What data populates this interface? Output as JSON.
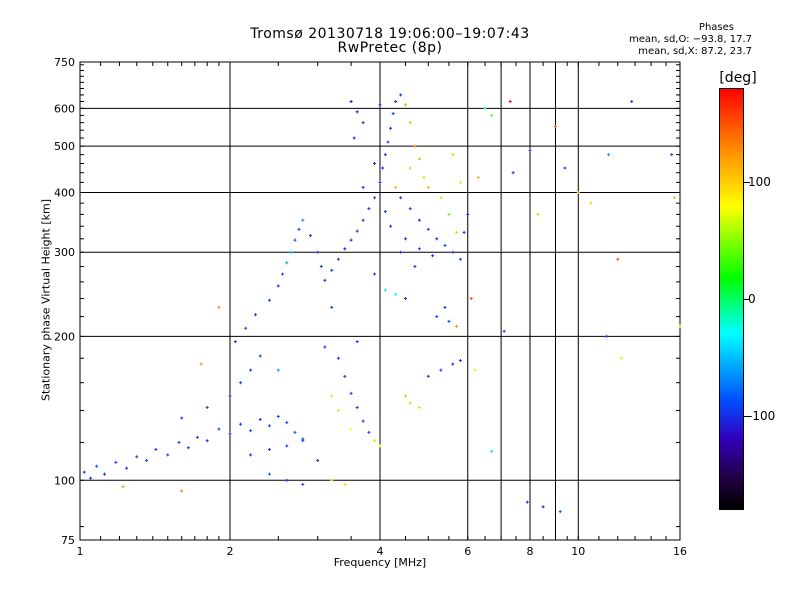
{
  "chart_data": {
    "type": "scatter",
    "title": "Tromsø 20130718 19:06:00–19:07:43",
    "subtitle": "RwPretec (8p)",
    "stats": {
      "header": "Phases",
      "line1": "mean, sd,O: −93.8, 17.7",
      "line2": "mean, sd,X:  87.2, 23.7"
    },
    "xlabel": "Frequency [MHz]",
    "ylabel": "Stationary phase Virtual Height [km]",
    "x_scale": "log",
    "y_scale": "log",
    "xlim": [
      1,
      16
    ],
    "ylim": [
      75,
      750
    ],
    "x_ticks": [
      1,
      2,
      4,
      6,
      8,
      10,
      16
    ],
    "x_tick_labels": [
      "1",
      "2",
      "4",
      "6",
      "8",
      "10",
      "16"
    ],
    "x_grid": [
      2,
      4,
      6,
      7,
      8,
      9,
      10
    ],
    "y_ticks": [
      75,
      100,
      200,
      300,
      400,
      500,
      600,
      750
    ],
    "y_tick_labels": [
      "75",
      "100",
      "200",
      "300",
      "400",
      "500",
      "600",
      "750"
    ],
    "y_grid": [
      100,
      200,
      300,
      400,
      500,
      600
    ],
    "grid": true,
    "colorbar": {
      "label": "[deg]",
      "ticks": [
        100,
        0,
        -100
      ],
      "tick_labels": [
        "100",
        "0",
        "-100"
      ],
      "range": [
        -180,
        180
      ],
      "colormap": "rainbow"
    },
    "series": [
      {
        "points": [
          [
            1.02,
            104,
            -95
          ],
          [
            1.05,
            101,
            -100
          ],
          [
            1.08,
            107,
            -90
          ],
          [
            1.12,
            103,
            -98
          ],
          [
            1.18,
            109,
            -92
          ],
          [
            1.24,
            106,
            -101
          ],
          [
            1.3,
            112,
            -95
          ],
          [
            1.36,
            110,
            -88
          ],
          [
            1.42,
            116,
            -97
          ],
          [
            1.5,
            113,
            -93
          ],
          [
            1.58,
            120,
            -99
          ],
          [
            1.65,
            117,
            -90
          ],
          [
            1.72,
            123,
            -96
          ],
          [
            1.8,
            121,
            -102
          ],
          [
            1.9,
            128,
            -91
          ],
          [
            2.0,
            125,
            -97
          ],
          [
            2.1,
            131,
            -94
          ],
          [
            2.2,
            127,
            -86
          ],
          [
            2.3,
            134,
            -100
          ],
          [
            2.4,
            130,
            -92
          ],
          [
            2.5,
            136,
            -89
          ],
          [
            2.6,
            132,
            -95
          ],
          [
            2.7,
            126,
            -85
          ],
          [
            2.8,
            122,
            -99
          ],
          [
            2.2,
            113,
            -98
          ],
          [
            2.4,
            116,
            -95
          ],
          [
            2.6,
            118,
            -93
          ],
          [
            2.8,
            121,
            -90
          ],
          [
            1.6,
            135,
            -96
          ],
          [
            1.8,
            142,
            -93
          ],
          [
            2.0,
            150,
            -99
          ],
          [
            2.1,
            160,
            -91
          ],
          [
            2.2,
            170,
            -97
          ],
          [
            2.3,
            182,
            -94
          ],
          [
            2.05,
            195,
            -100
          ],
          [
            2.15,
            208,
            -88
          ],
          [
            2.25,
            222,
            -95
          ],
          [
            2.4,
            238,
            -92
          ],
          [
            2.5,
            255,
            -97
          ],
          [
            2.55,
            270,
            -90
          ],
          [
            2.6,
            285,
            -60
          ],
          [
            2.65,
            300,
            -55
          ],
          [
            2.7,
            318,
            -95
          ],
          [
            2.75,
            335,
            -93
          ],
          [
            2.8,
            350,
            -65
          ],
          [
            2.9,
            325,
            -99
          ],
          [
            3.0,
            300,
            -90
          ],
          [
            3.05,
            280,
            -92
          ],
          [
            3.1,
            262,
            -101
          ],
          [
            3.2,
            275,
            -94
          ],
          [
            3.3,
            290,
            -96
          ],
          [
            3.4,
            305,
            -110
          ],
          [
            3.5,
            318,
            -102
          ],
          [
            3.6,
            332,
            -98
          ],
          [
            3.7,
            350,
            -104
          ],
          [
            3.8,
            370,
            -100
          ],
          [
            3.9,
            390,
            -95
          ],
          [
            4.0,
            420,
            -97
          ],
          [
            4.05,
            450,
            -105
          ],
          [
            4.1,
            480,
            -100
          ],
          [
            4.15,
            510,
            -93
          ],
          [
            4.2,
            545,
            -99
          ],
          [
            4.25,
            585,
            -92
          ],
          [
            4.3,
            620,
            -100
          ],
          [
            4.4,
            640,
            -95
          ],
          [
            3.5,
            620,
            -110
          ],
          [
            3.6,
            590,
            -105
          ],
          [
            3.7,
            560,
            -100
          ],
          [
            3.55,
            520,
            -108
          ],
          [
            4.0,
            610,
            -112
          ],
          [
            4.5,
            610,
            120
          ],
          [
            4.6,
            560,
            110
          ],
          [
            4.7,
            500,
            130
          ],
          [
            4.8,
            470,
            115
          ],
          [
            4.9,
            430,
            100
          ],
          [
            4.6,
            450,
            105
          ],
          [
            5.0,
            410,
            110
          ],
          [
            5.3,
            390,
            95
          ],
          [
            5.5,
            360,
            40
          ],
          [
            5.7,
            330,
            100
          ],
          [
            5.8,
            420,
            90
          ],
          [
            5.6,
            480,
            105
          ],
          [
            4.4,
            390,
            -98
          ],
          [
            4.6,
            370,
            -95
          ],
          [
            4.8,
            350,
            -97
          ],
          [
            5.0,
            335,
            -93
          ],
          [
            5.2,
            320,
            -100
          ],
          [
            5.4,
            310,
            -88
          ],
          [
            5.6,
            300,
            -92
          ],
          [
            5.8,
            290,
            -96
          ],
          [
            4.2,
            340,
            -100
          ],
          [
            4.5,
            320,
            -97
          ],
          [
            4.8,
            305,
            -94
          ],
          [
            5.1,
            295,
            -98
          ],
          [
            3.3,
            180,
            -98
          ],
          [
            3.4,
            165,
            -95
          ],
          [
            3.5,
            152,
            -90
          ],
          [
            3.6,
            142,
            -88
          ],
          [
            3.7,
            133,
            -97
          ],
          [
            3.8,
            126,
            -94
          ],
          [
            3.9,
            121,
            60
          ],
          [
            4.0,
            118,
            70
          ],
          [
            3.2,
            150,
            60
          ],
          [
            3.3,
            140,
            70
          ],
          [
            3.5,
            128,
            80
          ],
          [
            4.5,
            150,
            110
          ],
          [
            4.6,
            145,
            100
          ],
          [
            4.8,
            142,
            95
          ],
          [
            5.0,
            165,
            -95
          ],
          [
            5.3,
            170,
            -92
          ],
          [
            5.6,
            175,
            -98
          ],
          [
            5.8,
            178,
            -100
          ],
          [
            5.2,
            220,
            -90
          ],
          [
            5.5,
            215,
            -88
          ],
          [
            4.1,
            250,
            -40
          ],
          [
            4.3,
            245,
            -30
          ],
          [
            4.5,
            240,
            -100
          ],
          [
            3.2,
            100,
            90
          ],
          [
            3.4,
            98,
            95
          ],
          [
            2.6,
            100,
            -95
          ],
          [
            2.8,
            98,
            -90
          ],
          [
            2.4,
            103,
            -85
          ],
          [
            6.3,
            430,
            110
          ],
          [
            6.5,
            600,
            -20
          ],
          [
            6.7,
            580,
            40
          ],
          [
            7.3,
            620,
            180
          ],
          [
            7.4,
            440,
            -95
          ],
          [
            8.0,
            490,
            -95
          ],
          [
            8.3,
            360,
            100
          ],
          [
            9.0,
            550,
            150
          ],
          [
            9.4,
            450,
            -90
          ],
          [
            10.0,
            400,
            110
          ],
          [
            10.6,
            380,
            100
          ],
          [
            11.5,
            480,
            -60
          ],
          [
            12.8,
            620,
            -95
          ],
          [
            15.4,
            480,
            -95
          ],
          [
            15.6,
            390,
            110
          ],
          [
            16.0,
            210,
            100
          ],
          [
            6.7,
            115,
            -40
          ],
          [
            7.9,
            90,
            -99
          ],
          [
            8.5,
            88,
            -110
          ],
          [
            9.2,
            86,
            -85
          ],
          [
            12.2,
            180,
            60
          ],
          [
            12.0,
            290,
            150
          ],
          [
            11.4,
            200,
            -95
          ],
          [
            7.1,
            205,
            -95
          ],
          [
            6.1,
            240,
            150
          ],
          [
            6.2,
            170,
            90
          ],
          [
            1.22,
            97,
            120
          ],
          [
            1.6,
            95,
            130
          ],
          [
            1.75,
            175,
            130
          ],
          [
            1.9,
            230,
            130
          ],
          [
            2.5,
            170,
            -60
          ],
          [
            3.0,
            110,
            -98
          ],
          [
            3.1,
            190,
            -100
          ],
          [
            3.2,
            230,
            -96
          ],
          [
            3.9,
            270,
            -94
          ],
          [
            3.6,
            195,
            -97
          ],
          [
            3.7,
            410,
            -95
          ],
          [
            3.9,
            460,
            -100
          ],
          [
            4.1,
            365,
            -98
          ],
          [
            4.3,
            410,
            110
          ],
          [
            4.4,
            300,
            -92
          ],
          [
            4.7,
            280,
            -90
          ],
          [
            5.4,
            230,
            -95
          ],
          [
            5.7,
            210,
            130
          ],
          [
            5.9,
            330,
            -97
          ],
          [
            6.0,
            360,
            -100
          ]
        ]
      }
    ]
  }
}
